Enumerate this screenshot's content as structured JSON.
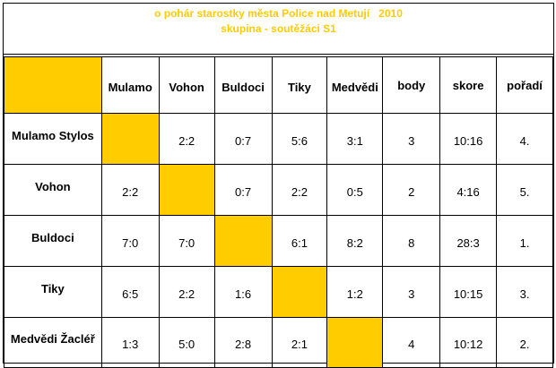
{
  "title": {
    "line1": "o pohár starostky města Police nad Metují   2010",
    "line2": "skupina - soutěžáci S1"
  },
  "colors": {
    "highlight": "#FFCC00",
    "border": "#000000",
    "text": "#000000"
  },
  "columns": {
    "teams": [
      "Mulamo",
      "Vohon",
      "Buldoci",
      "Tiky",
      "Medvědi"
    ],
    "stats": [
      "body",
      "skore",
      "pořadí"
    ]
  },
  "rows": [
    {
      "team": "Mulamo Stylos",
      "results": [
        "",
        "2:2",
        "0:7",
        "5:6",
        "3:1"
      ],
      "body": "3",
      "skore": "10:16",
      "poradi": "4."
    },
    {
      "team": "Vohon",
      "results": [
        "2:2",
        "",
        "0:7",
        "2:2",
        "0:5"
      ],
      "body": "2",
      "skore": "4:16",
      "poradi": "5."
    },
    {
      "team": "Buldoci",
      "results": [
        "7:0",
        "7:0",
        "",
        "6:1",
        "8:2"
      ],
      "body": "8",
      "skore": "28:3",
      "poradi": "1."
    },
    {
      "team": "Tiky",
      "results": [
        "6:5",
        "2:2",
        "1:6",
        "",
        "1:2"
      ],
      "body": "3",
      "skore": "10:15",
      "poradi": "3."
    },
    {
      "team": "Medvědi Žacléř",
      "results": [
        "1:3",
        "5:0",
        "2:8",
        "2:1",
        ""
      ],
      "body": "4",
      "skore": "10:12",
      "poradi": "2."
    }
  ]
}
